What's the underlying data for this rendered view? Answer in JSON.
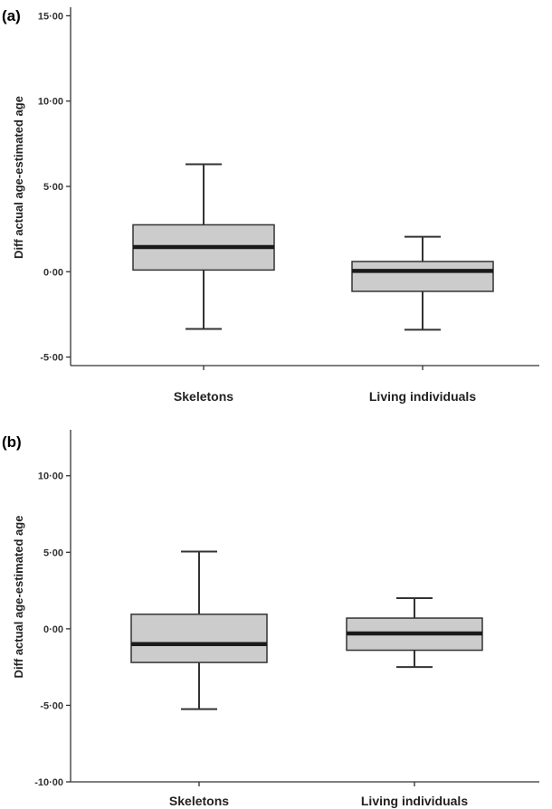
{
  "chart_data": [
    {
      "panel": "(a)",
      "type": "box",
      "ylabel": "Diff actual age-estimated age",
      "yticks": [
        15,
        10,
        5,
        0,
        -5
      ],
      "ytick_labels": [
        "15·00",
        "10·00",
        "5·00",
        "0·00",
        "-5·00"
      ],
      "ylim": [
        -5.5,
        15.5
      ],
      "categories": [
        "Skeletons",
        "Living individuals"
      ],
      "boxes": [
        {
          "category": "Skeletons",
          "min": -3.35,
          "q1": 0.1,
          "median": 1.45,
          "q3": 2.75,
          "max": 6.3
        },
        {
          "category": "Living individuals",
          "min": -3.4,
          "q1": -1.15,
          "median": 0.05,
          "q3": 0.6,
          "max": 2.05
        }
      ]
    },
    {
      "panel": "(b)",
      "type": "box",
      "ylabel": "Diff actual age-estimated age",
      "yticks": [
        10,
        5,
        0,
        -5,
        -10
      ],
      "ytick_labels": [
        "10·00",
        "5·00",
        "0·00",
        "-5·00",
        "-10·00"
      ],
      "ylim": [
        -10,
        13
      ],
      "categories": [
        "Skeletons",
        "Living individuals"
      ],
      "boxes": [
        {
          "category": "Skeletons",
          "min": -5.25,
          "q1": -2.2,
          "median": -1.0,
          "q3": 0.95,
          "max": 5.05
        },
        {
          "category": "Living individuals",
          "min": -2.5,
          "q1": -1.4,
          "median": -0.3,
          "q3": 0.7,
          "max": 2.0
        }
      ]
    }
  ]
}
